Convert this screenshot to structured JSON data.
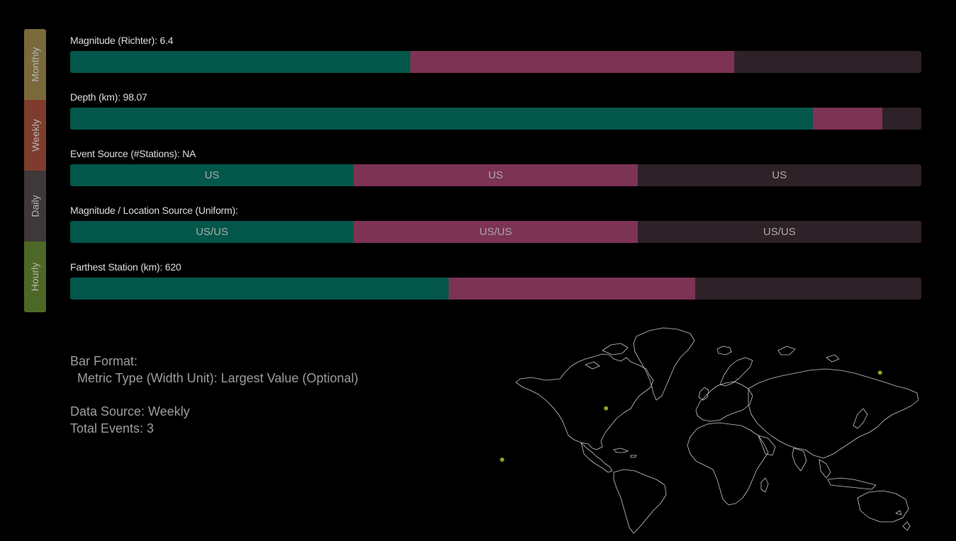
{
  "tabs": [
    {
      "label": "Monthly",
      "color": "#7a6a3b"
    },
    {
      "label": "Weekly",
      "color": "#7f3c2d"
    },
    {
      "label": "Daily",
      "color": "#3e3838"
    },
    {
      "label": "Hourly",
      "color": "#4d6826"
    }
  ],
  "colors": {
    "seg1": "#02574a",
    "seg2": "#7d3354",
    "seg3": "#2e2228",
    "map_line": "#c7c7c7",
    "marker": "#88a51e"
  },
  "metrics": [
    {
      "label": "Magnitude (Richter): 6.4",
      "segments": [
        {
          "fraction": 0.4,
          "text": ""
        },
        {
          "fraction": 0.38,
          "text": ""
        },
        {
          "fraction": 0.22,
          "text": ""
        }
      ]
    },
    {
      "label": "Depth (km): 98.07",
      "segments": [
        {
          "fraction": 0.873,
          "text": ""
        },
        {
          "fraction": 0.081,
          "text": ""
        },
        {
          "fraction": 0.046,
          "text": ""
        }
      ]
    },
    {
      "label": "Event Source (#Stations): NA",
      "segments": [
        {
          "fraction": 0.3333,
          "text": "US"
        },
        {
          "fraction": 0.3333,
          "text": "US"
        },
        {
          "fraction": 0.3334,
          "text": "US"
        }
      ]
    },
    {
      "label": "Magnitude / Location Source (Uniform):",
      "segments": [
        {
          "fraction": 0.3333,
          "text": "US/US"
        },
        {
          "fraction": 0.3333,
          "text": "US/US"
        },
        {
          "fraction": 0.3334,
          "text": "US/US"
        }
      ]
    },
    {
      "label": "Farthest Station (km): 620",
      "segments": [
        {
          "fraction": 0.445,
          "text": ""
        },
        {
          "fraction": 0.289,
          "text": ""
        },
        {
          "fraction": 0.266,
          "text": ""
        }
      ]
    }
  ],
  "info": {
    "bar_format_title": "Bar Format:",
    "bar_format_desc": "Metric Type (Width Unit): Largest Value (Optional)",
    "data_source": "Data Source: Weekly",
    "total_events": "Total Events: 3"
  },
  "map": {
    "markers": [
      {
        "lat": 37.5,
        "lon": 141.5
      },
      {
        "lat": 13.5,
        "lon": -90.5
      },
      {
        "lat": -21.0,
        "lon": -178.5
      }
    ]
  }
}
